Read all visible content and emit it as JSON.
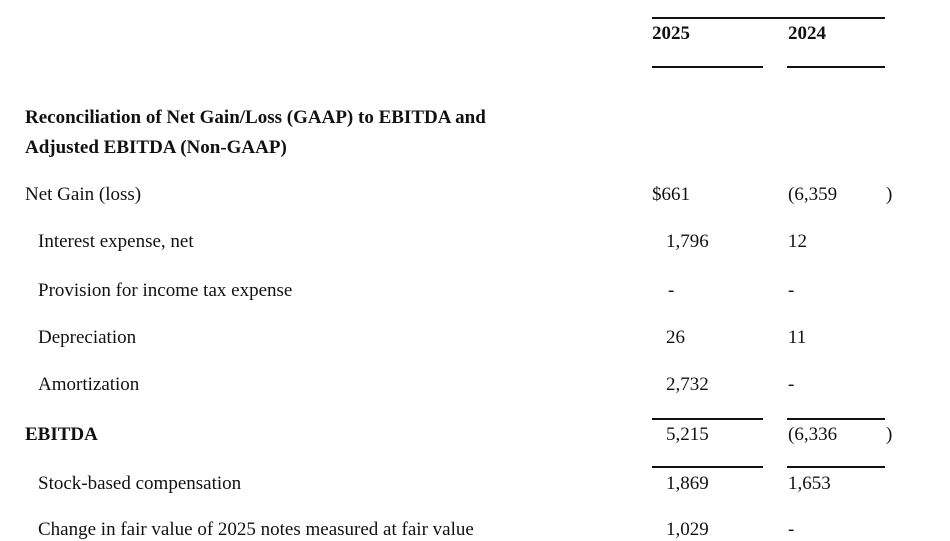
{
  "header": {
    "col1": "2025",
    "col2": "2024"
  },
  "section_title": [
    "Reconciliation of Net Gain/Loss (GAAP) to EBITDA and",
    "Adjusted EBITDA (Non-GAAP)"
  ],
  "rows": [
    {
      "label": "Net Gain (loss)",
      "v2025": "$661",
      "v2024": "(6,359",
      "close": ")",
      "bold": false,
      "indent": false
    },
    {
      "label": "Interest expense, net",
      "v2025": "1,796",
      "v2024": "12",
      "close": "",
      "bold": false,
      "indent": true
    },
    {
      "label": "Provision for income tax expense",
      "v2025": "-",
      "v2024": "-",
      "close": "",
      "bold": false,
      "indent": true
    },
    {
      "label": "Depreciation",
      "v2025": "26",
      "v2024": "11",
      "close": "",
      "bold": false,
      "indent": true
    },
    {
      "label": "Amortization",
      "v2025": "2,732",
      "v2024": "-",
      "close": "",
      "bold": false,
      "indent": true
    },
    {
      "label": "EBITDA",
      "v2025": "5,215",
      "v2024": "(6,336",
      "close": ")",
      "bold": true,
      "indent": false
    },
    {
      "label": "Stock-based compensation",
      "v2025": "1,869",
      "v2024": "1,653",
      "close": "",
      "bold": false,
      "indent": true
    },
    {
      "label": "Change in fair value of 2025 notes measured at fair value",
      "v2025": "1,029",
      "v2024": "-",
      "close": "",
      "bold": false,
      "indent": true
    }
  ]
}
